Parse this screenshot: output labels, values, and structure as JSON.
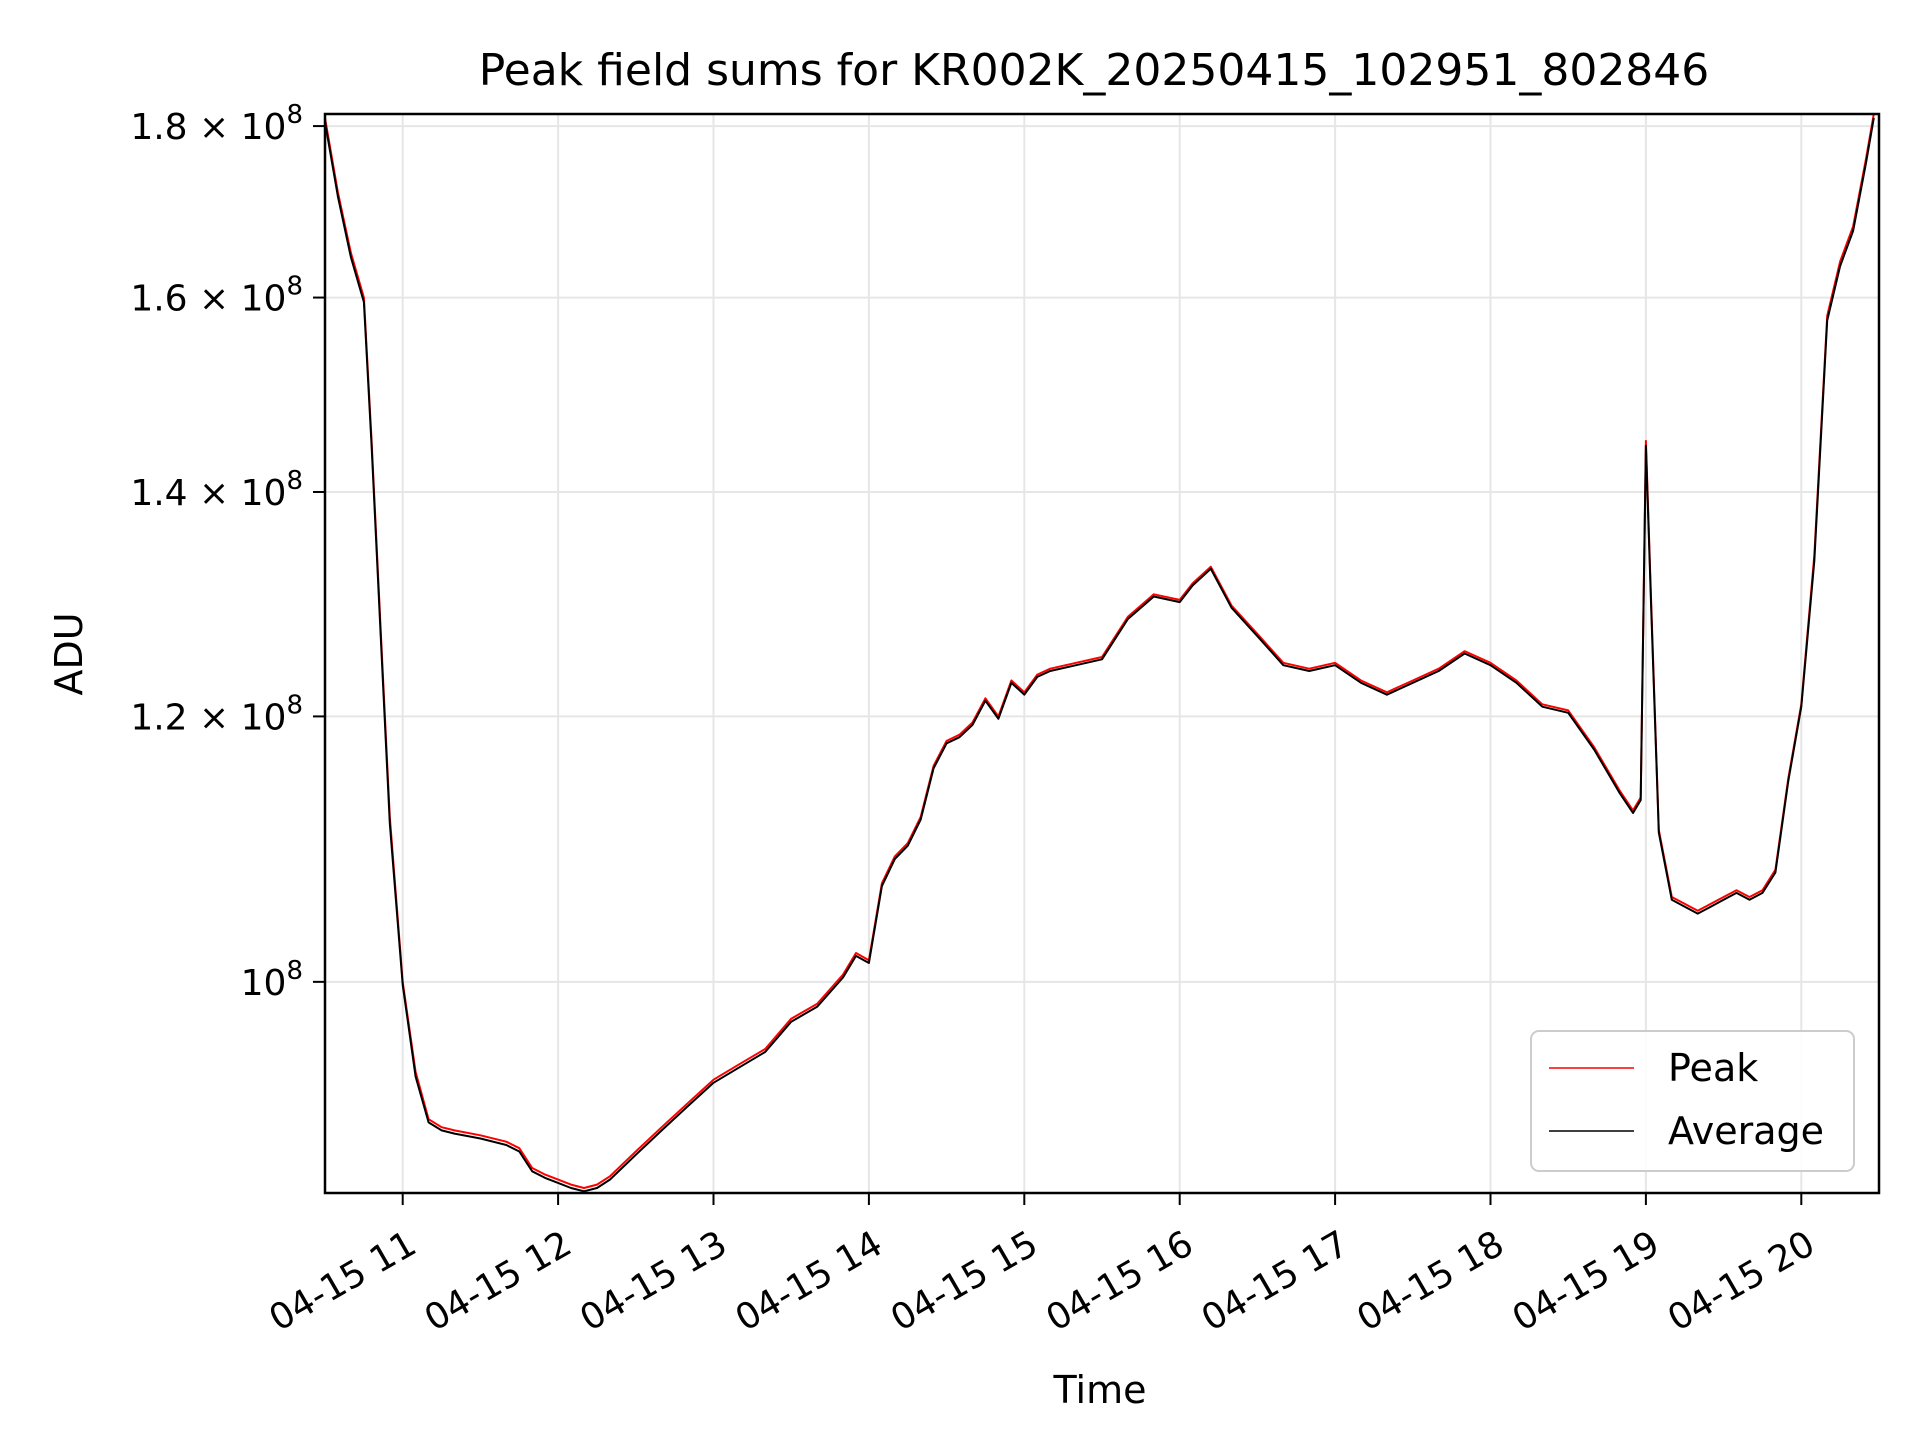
{
  "chart_data": {
    "type": "line",
    "title": "Peak field sums for KR002K_20250415_102951_802846",
    "xlabel": "Time",
    "ylabel": "ADU",
    "x_scale": "time",
    "y_scale": "log",
    "xlim": [
      "04-15 10:30",
      "04-15 20:30"
    ],
    "ylim": [
      86500000,
      181500000
    ],
    "x_ticks": [
      "04-15 11",
      "04-15 12",
      "04-15 13",
      "04-15 14",
      "04-15 15",
      "04-15 16",
      "04-15 17",
      "04-15 18",
      "04-15 19",
      "04-15 20"
    ],
    "y_ticks": [
      {
        "value": 100000000,
        "mantissa": "",
        "exponent": "8"
      },
      {
        "value": 120000000,
        "mantissa": "1.2",
        "exponent": "8"
      },
      {
        "value": 140000000,
        "mantissa": "1.4",
        "exponent": "8"
      },
      {
        "value": 160000000,
        "mantissa": "1.6",
        "exponent": "8"
      },
      {
        "value": 180000000,
        "mantissa": "1.8",
        "exponent": "8"
      }
    ],
    "grid": true,
    "legend_position": "lower-right",
    "series": [
      {
        "name": "Peak",
        "color": "#ff0000"
      },
      {
        "name": "Average",
        "color": "#000000"
      }
    ],
    "x": [
      "04-15 10:30",
      "04-15 10:35",
      "04-15 10:40",
      "04-15 10:45",
      "04-15 10:48",
      "04-15 10:52",
      "04-15 10:55",
      "04-15 11:00",
      "04-15 11:05",
      "04-15 11:10",
      "04-15 11:15",
      "04-15 11:20",
      "04-15 11:30",
      "04-15 11:40",
      "04-15 11:45",
      "04-15 11:50",
      "04-15 11:55",
      "04-15 12:00",
      "04-15 12:05",
      "04-15 12:10",
      "04-15 12:15",
      "04-15 12:20",
      "04-15 12:30",
      "04-15 12:40",
      "04-15 12:50",
      "04-15 13:00",
      "04-15 13:10",
      "04-15 13:20",
      "04-15 13:30",
      "04-15 13:40",
      "04-15 13:50",
      "04-15 13:55",
      "04-15 14:00",
      "04-15 14:05",
      "04-15 14:10",
      "04-15 14:15",
      "04-15 14:20",
      "04-15 14:25",
      "04-15 14:30",
      "04-15 14:35",
      "04-15 14:40",
      "04-15 14:45",
      "04-15 14:50",
      "04-15 14:55",
      "04-15 15:00",
      "04-15 15:05",
      "04-15 15:10",
      "04-15 15:20",
      "04-15 15:30",
      "04-15 15:40",
      "04-15 15:50",
      "04-15 16:00",
      "04-15 16:05",
      "04-15 16:12",
      "04-15 16:20",
      "04-15 16:30",
      "04-15 16:40",
      "04-15 16:50",
      "04-15 17:00",
      "04-15 17:10",
      "04-15 17:20",
      "04-15 17:30",
      "04-15 17:40",
      "04-15 17:50",
      "04-15 18:00",
      "04-15 18:10",
      "04-15 18:20",
      "04-15 18:30",
      "04-15 18:40",
      "04-15 18:50",
      "04-15 18:55",
      "04-15 18:58",
      "04-15 19:00",
      "04-15 19:02",
      "04-15 19:05",
      "04-15 19:10",
      "04-15 19:15",
      "04-15 19:20",
      "04-15 19:25",
      "04-15 19:30",
      "04-15 19:35",
      "04-15 19:40",
      "04-15 19:45",
      "04-15 19:50",
      "04-15 19:55",
      "04-15 20:00",
      "04-15 20:05",
      "04-15 20:10",
      "04-15 20:15",
      "04-15 20:20",
      "04-15 20:25",
      "04-15 20:28"
    ],
    "values_peak": [
      181000000,
      172000000,
      165000000,
      160000000,
      145000000,
      125000000,
      112000000,
      100000000,
      94000000,
      91000000,
      90500000,
      90300000,
      90000000,
      89600000,
      89200000,
      88000000,
      87600000,
      87300000,
      87000000,
      86800000,
      87000000,
      87500000,
      89000000,
      90500000,
      92000000,
      93500000,
      94500000,
      95500000,
      97500000,
      98500000,
      100500000,
      102000000,
      101500000,
      107000000,
      109000000,
      110000000,
      112000000,
      116000000,
      118000000,
      118500000,
      119500000,
      121500000,
      120000000,
      123000000,
      122000000,
      123500000,
      124000000,
      124500000,
      125000000,
      128500000,
      130500000,
      130000000,
      131500000,
      133000000,
      129500000,
      127000000,
      124500000,
      124000000,
      124500000,
      123000000,
      122000000,
      123000000,
      124000000,
      125500000,
      124500000,
      123000000,
      121000000,
      120500000,
      117500000,
      114000000,
      112500000,
      113500000,
      145000000,
      130000000,
      111000000,
      106000000,
      105500000,
      105000000,
      105500000,
      106000000,
      106500000,
      106000000,
      106500000,
      108000000,
      115000000,
      121000000,
      134000000,
      158000000,
      164000000,
      168000000,
      176000000,
      181500000
    ],
    "values_average": [
      180500000,
      171500000,
      164500000,
      159500000,
      144500000,
      124500000,
      111500000,
      99800000,
      93700000,
      90800000,
      90300000,
      90100000,
      89800000,
      89400000,
      89000000,
      87800000,
      87400000,
      87100000,
      86800000,
      86600000,
      86800000,
      87300000,
      88800000,
      90300000,
      91800000,
      93300000,
      94300000,
      95300000,
      97300000,
      98300000,
      100300000,
      101800000,
      101300000,
      106800000,
      108800000,
      109800000,
      111800000,
      115800000,
      117800000,
      118300000,
      119300000,
      121300000,
      119800000,
      122800000,
      121800000,
      123300000,
      123800000,
      124300000,
      124800000,
      128300000,
      130300000,
      129800000,
      131300000,
      132800000,
      129300000,
      126800000,
      124300000,
      123800000,
      124300000,
      122800000,
      121800000,
      122800000,
      123800000,
      125300000,
      124300000,
      122800000,
      120800000,
      120300000,
      117300000,
      113800000,
      112300000,
      113300000,
      144500000,
      129500000,
      110800000,
      105800000,
      105300000,
      104800000,
      105300000,
      105800000,
      106300000,
      105800000,
      106300000,
      107800000,
      114800000,
      120800000,
      133500000,
      157500000,
      163500000,
      167500000,
      175500000,
      181000000
    ]
  }
}
